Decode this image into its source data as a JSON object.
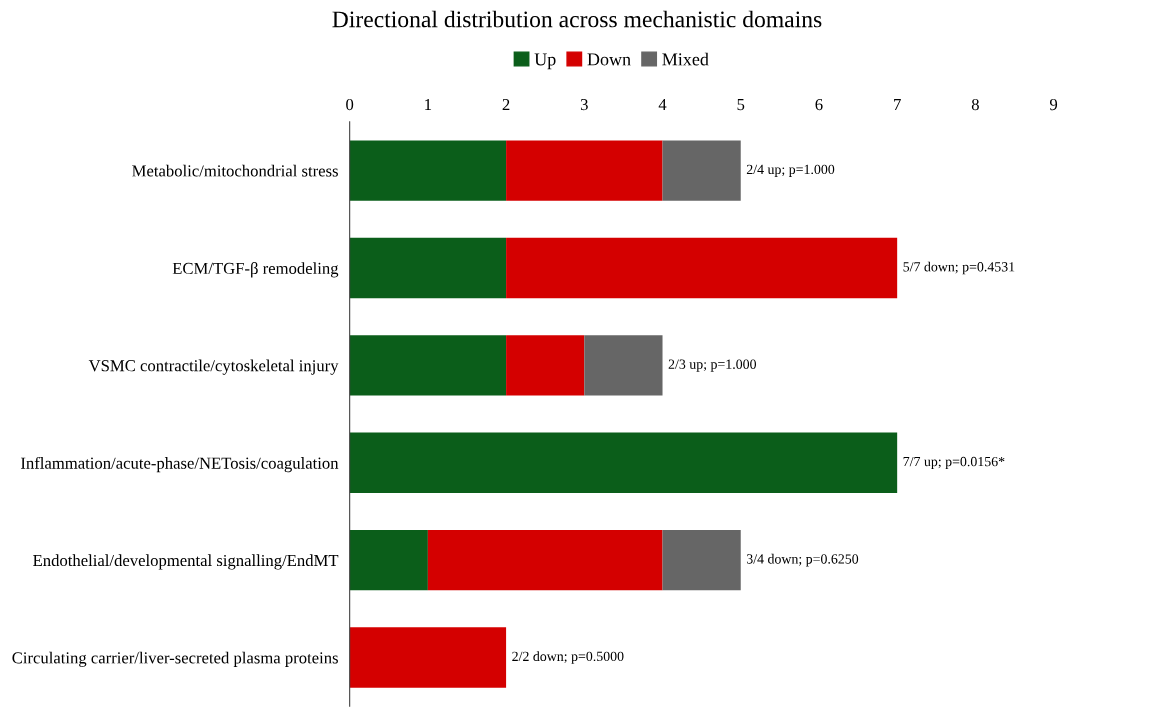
{
  "chart_data": {
    "type": "bar",
    "orientation": "horizontal",
    "stacked": true,
    "title": "Directional distribution across mechanistic domains",
    "categories": [
      "Metabolic/mitochondrial stress",
      "ECM/TGF-β remodeling",
      "VSMC contractile/cytoskeletal injury",
      "Inflammation/acute-phase/NETosis/coagulation",
      "Endothelial/developmental signalling/EndMT",
      "Circulating carrier/liver-secreted plasma proteins"
    ],
    "series": [
      {
        "name": "Up",
        "color": "#0b5e1a",
        "values": [
          2,
          2,
          2,
          7,
          1,
          0
        ]
      },
      {
        "name": "Down",
        "color": "#d40000",
        "values": [
          2,
          5,
          1,
          0,
          3,
          2
        ]
      },
      {
        "name": "Mixed",
        "color": "#666666",
        "values": [
          1,
          0,
          1,
          0,
          1,
          0
        ]
      }
    ],
    "xlim": [
      0,
      9
    ],
    "xticks": [
      0,
      1,
      2,
      3,
      4,
      5,
      6,
      7,
      8,
      9
    ],
    "grid": false,
    "legend": "top",
    "annotations": [
      {
        "text": "2/4 up; p=1.000",
        "x": 5,
        "y": "Metabolic/mitochondrial stress"
      },
      {
        "text": "5/7 down; p=0.4531",
        "x": 7,
        "y": "ECM/TGF-β remodeling"
      },
      {
        "text": "2/3 up; p=1.000",
        "x": 4,
        "y": "VSMC contractile/cytoskeletal injury"
      },
      {
        "text": "7/7 up; p=0.0156*",
        "x": 7,
        "y": "Inflammation/acute-phase/NETosis/coagulation"
      },
      {
        "text": "3/4 down; p=0.6250",
        "x": 5,
        "y": "Endothelial/developmental signalling/EndMT"
      },
      {
        "text": "2/2 down; p=0.5000",
        "x": 2,
        "y": "Circulating carrier/liver-secreted plasma proteins"
      }
    ]
  }
}
